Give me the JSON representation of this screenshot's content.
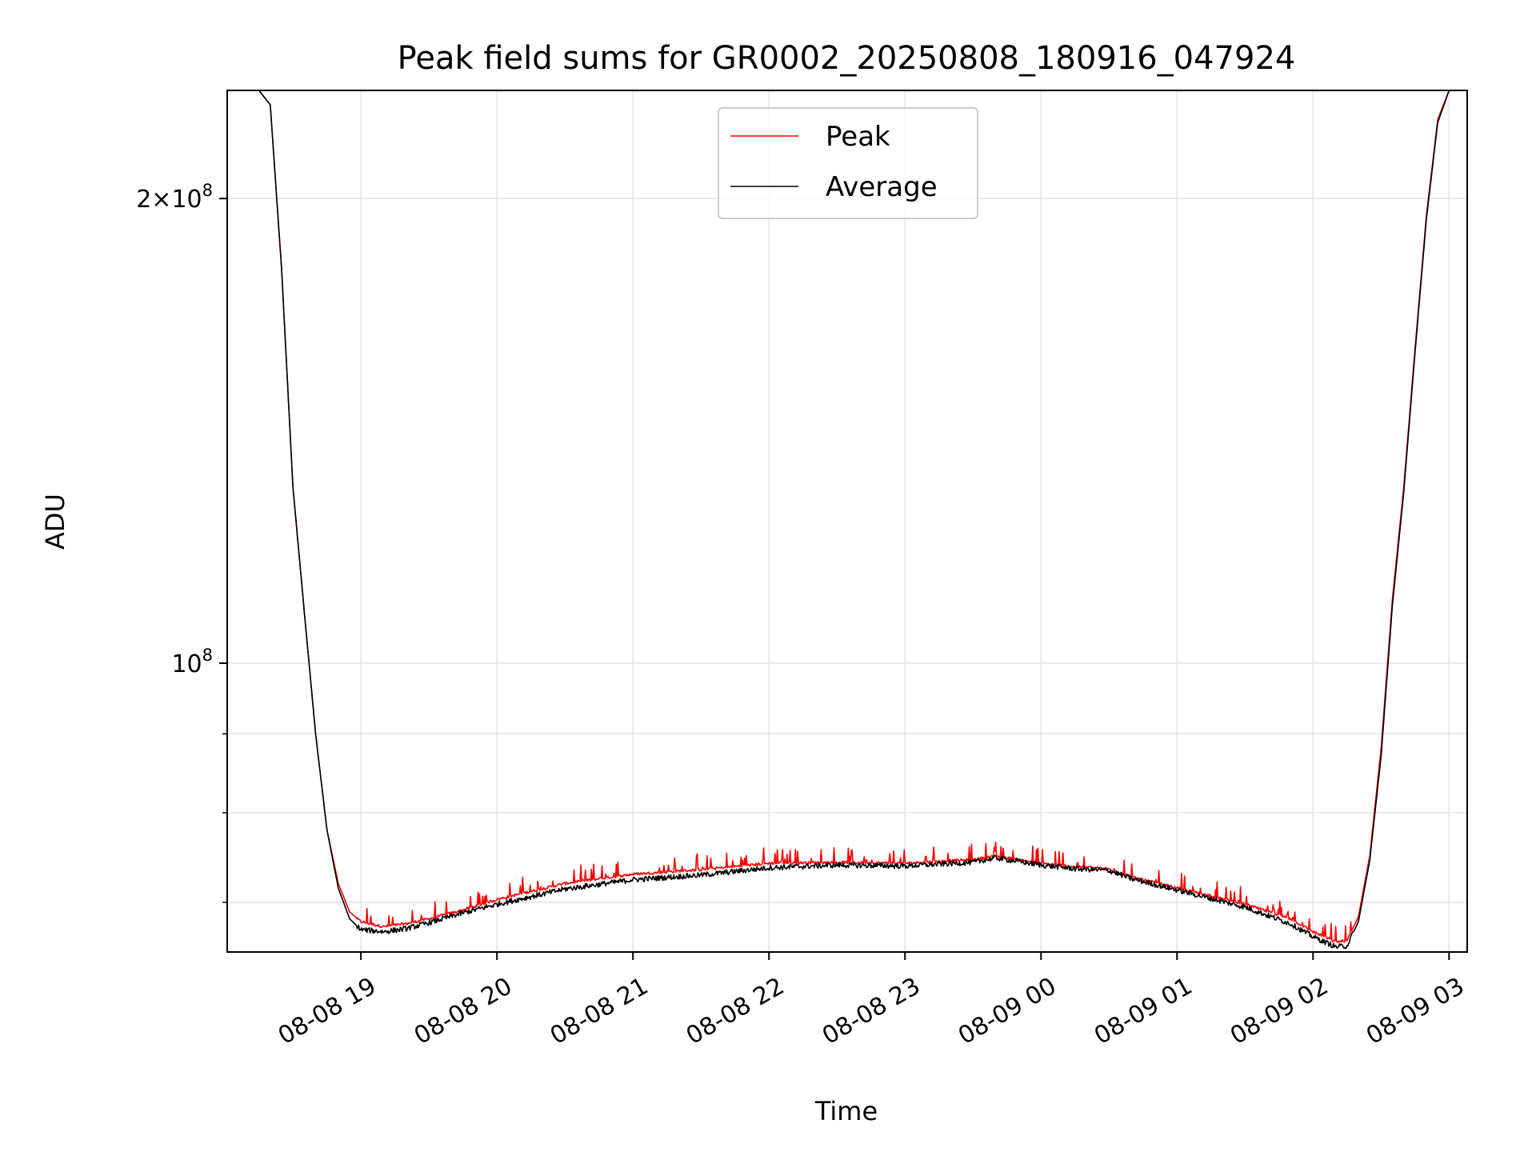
{
  "chart_data": {
    "type": "line",
    "title": "Peak field sums for GR0002_20250808_180916_047924",
    "xlabel": "Time",
    "ylabel": "ADU",
    "yscale": "log",
    "ylim": [
      65000000,
      235000000
    ],
    "grid": true,
    "legend_position": "upper-center",
    "x_tick_labels": [
      "08-08 19",
      "08-08 20",
      "08-08 21",
      "08-08 22",
      "08-08 23",
      "08-09 00",
      "08-09 01",
      "08-09 02",
      "08-09 03"
    ],
    "x_tick_rotation": 30,
    "y_tick_labels": {
      "major": [
        {
          "value": 100000000,
          "base": "10",
          "exp": "8",
          "coef": ""
        },
        {
          "value": 200000000,
          "base": "10",
          "exp": "8",
          "coef": "2"
        }
      ]
    },
    "y_minor_ticks": [
      70000000,
      80000000,
      90000000
    ],
    "series": [
      {
        "name": "Peak",
        "color": "#ff0000",
        "x": [
          "08-08 18:09",
          "08-08 18:15",
          "08-08 18:20",
          "08-08 18:25",
          "08-08 18:30",
          "08-08 18:35",
          "08-08 18:40",
          "08-08 18:45",
          "08-08 18:50",
          "08-08 18:55",
          "08-08 19:00",
          "08-08 19:10",
          "08-08 19:20",
          "08-08 19:30",
          "08-08 19:45",
          "08-08 20:00",
          "08-08 20:30",
          "08-08 21:00",
          "08-08 21:30",
          "08-08 22:00",
          "08-08 22:30",
          "08-08 23:00",
          "08-08 23:30",
          "08-08 23:40",
          "08-09 00:00",
          "08-09 00:15",
          "08-09 00:30",
          "08-09 00:40",
          "08-09 01:00",
          "08-09 01:30",
          "08-09 01:50",
          "08-09 02:00",
          "08-09 02:10",
          "08-09 02:15",
          "08-09 02:20",
          "08-09 02:25",
          "08-09 02:30",
          "08-09 02:35",
          "08-09 02:40",
          "08-09 02:45",
          "08-09 02:50",
          "08-09 02:55",
          "08-09 03:00"
        ],
        "values": [
          235000000,
          235000000,
          230000000,
          180000000,
          130000000,
          108000000,
          90000000,
          78000000,
          72000000,
          69000000,
          68000000,
          67500000,
          67800000,
          68300000,
          69200000,
          70300000,
          72000000,
          73000000,
          73500000,
          74200000,
          74300000,
          74200000,
          74600000,
          75000000,
          74200000,
          73800000,
          73600000,
          72700000,
          71500000,
          69800000,
          68300000,
          67000000,
          66000000,
          66100000,
          68500000,
          75000000,
          88000000,
          110000000,
          130000000,
          160000000,
          195000000,
          225000000,
          235000000
        ]
      },
      {
        "name": "Average",
        "color": "#000000",
        "x": [
          "08-08 18:09",
          "08-08 18:15",
          "08-08 18:20",
          "08-08 18:25",
          "08-08 18:30",
          "08-08 18:35",
          "08-08 18:40",
          "08-08 18:45",
          "08-08 18:50",
          "08-08 18:55",
          "08-08 19:00",
          "08-08 19:10",
          "08-08 19:20",
          "08-08 19:30",
          "08-08 19:45",
          "08-08 20:00",
          "08-08 20:30",
          "08-08 21:00",
          "08-08 21:30",
          "08-08 22:00",
          "08-08 22:30",
          "08-08 23:00",
          "08-08 23:30",
          "08-08 23:40",
          "08-09 00:00",
          "08-09 00:15",
          "08-09 00:30",
          "08-09 00:40",
          "08-09 01:00",
          "08-09 01:30",
          "08-09 01:50",
          "08-09 02:00",
          "08-09 02:10",
          "08-09 02:15",
          "08-09 02:20",
          "08-09 02:25",
          "08-09 02:30",
          "08-09 02:35",
          "08-09 02:40",
          "08-09 02:45",
          "08-09 02:50",
          "08-09 02:55",
          "08-09 03:00"
        ],
        "values": [
          235000000,
          235000000,
          230000000,
          180000000,
          130000000,
          108000000,
          90000000,
          78000000,
          71500000,
          68300000,
          67200000,
          67000000,
          67300000,
          67900000,
          68900000,
          69800000,
          71400000,
          72400000,
          72900000,
          73700000,
          74000000,
          73900000,
          74300000,
          74800000,
          74000000,
          73600000,
          73400000,
          72500000,
          71300000,
          69500000,
          67800000,
          66500000,
          65500000,
          65600000,
          68000000,
          74500000,
          87000000,
          109000000,
          129000000,
          159000000,
          194000000,
          224000000,
          235000000
        ]
      }
    ]
  }
}
